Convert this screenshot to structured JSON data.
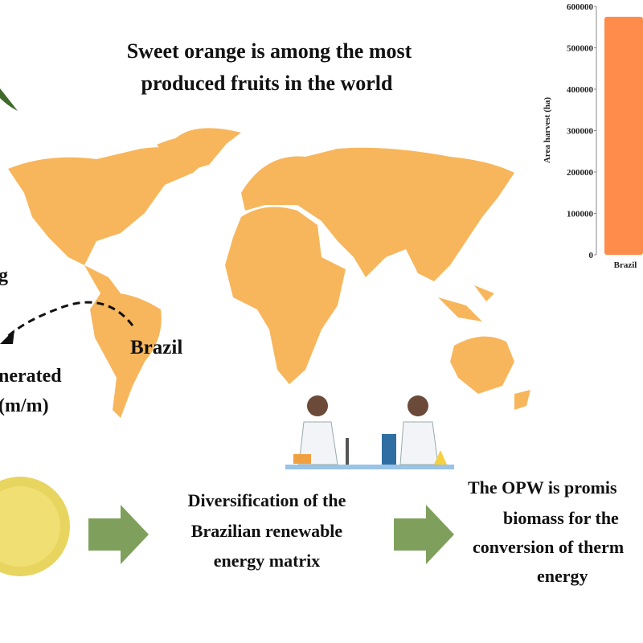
{
  "header": {
    "title_lines": [
      "Sweet orange is among the most",
      "produced fruits in the world"
    ]
  },
  "left_labels": {
    "cut_word": "g",
    "country": "Brazil",
    "generated_lines": [
      "nerated",
      "(m/m)"
    ]
  },
  "chart": {
    "type": "bar",
    "ylabel": "Area harvest (ha)",
    "categories": [
      "Brazil"
    ],
    "values": [
      575000
    ],
    "color": "#ff8c4a",
    "ylim": [
      0,
      600000
    ],
    "yticks": [
      0,
      100000,
      200000,
      300000,
      400000,
      500000,
      600000
    ]
  },
  "steps": [
    {
      "lines": [
        "Diversification of the",
        "Brazilian renewable",
        "energy matrix"
      ]
    },
    {
      "lines": [
        "The OPW is promis",
        "biomass for the",
        "conversion of therm",
        "energy"
      ]
    }
  ]
}
